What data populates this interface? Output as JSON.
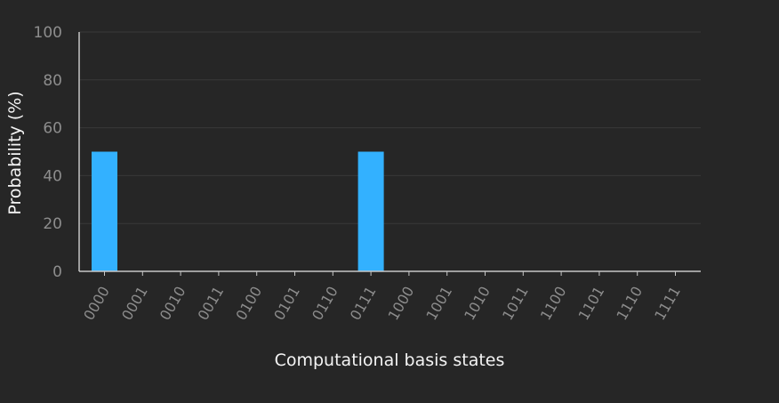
{
  "chart_data": {
    "type": "bar",
    "title": "",
    "xlabel": "Computational basis states",
    "ylabel": "Probability (%)",
    "ylim": [
      0,
      100
    ],
    "yticks": [
      "0",
      "20",
      "40",
      "60",
      "80",
      "100"
    ],
    "grid": "horizontal",
    "categories": [
      "0000",
      "0001",
      "0010",
      "0011",
      "0100",
      "0101",
      "0110",
      "0111",
      "1000",
      "1001",
      "1010",
      "1011",
      "1100",
      "1101",
      "1110",
      "1111"
    ],
    "values": [
      50,
      0,
      0,
      0,
      0,
      0,
      0,
      50,
      0,
      0,
      0,
      0,
      0,
      0,
      0,
      0
    ]
  },
  "colors": {
    "background": "#262626",
    "bar": "#33b1ff",
    "axis": "#c6c6c6",
    "grid": "#393939",
    "tick_text": "#8d8d8d",
    "label_text": "#f4f4f4"
  }
}
